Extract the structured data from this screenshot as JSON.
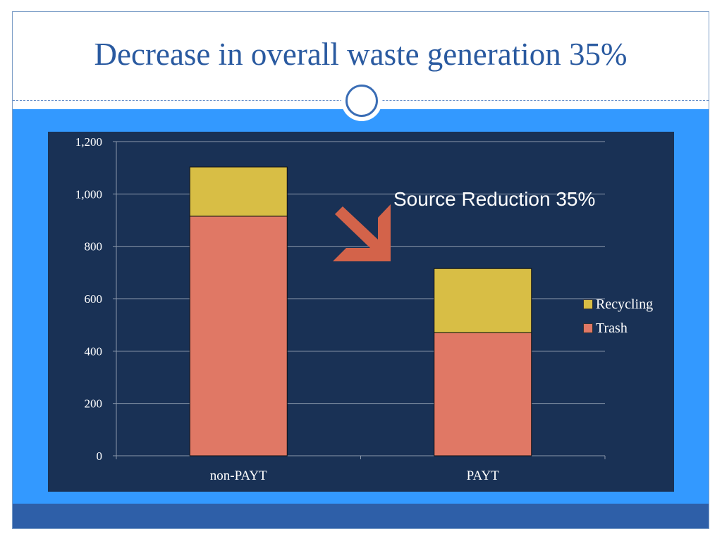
{
  "slide": {
    "title": "Decrease in overall waste generation 35%",
    "annotation": "Source Reduction 35%",
    "arrow_icon": "arrow-down-right-icon",
    "colors": {
      "title": "#2a5aa0",
      "band": "#3399ff",
      "panel": "#193155",
      "arrow": "#d3634a"
    }
  },
  "chart_data": {
    "type": "bar",
    "stacked": true,
    "categories": [
      "non-PAYT",
      "PAYT"
    ],
    "series": [
      {
        "name": "Trash",
        "values": [
          915,
          470
        ],
        "color": "#e07865"
      },
      {
        "name": "Recycling",
        "values": [
          188,
          245
        ],
        "color": "#d8be45"
      }
    ],
    "legend_order": [
      "Recycling",
      "Trash"
    ],
    "ylim": [
      0,
      1200
    ],
    "yticks": [
      0,
      200,
      400,
      600,
      800,
      1000,
      1200
    ],
    "ytick_labels": [
      "0",
      "200",
      "400",
      "600",
      "800",
      "1,000",
      "1,200"
    ],
    "grid": true,
    "legend_position": "right",
    "title": "",
    "xlabel": "",
    "ylabel": ""
  }
}
